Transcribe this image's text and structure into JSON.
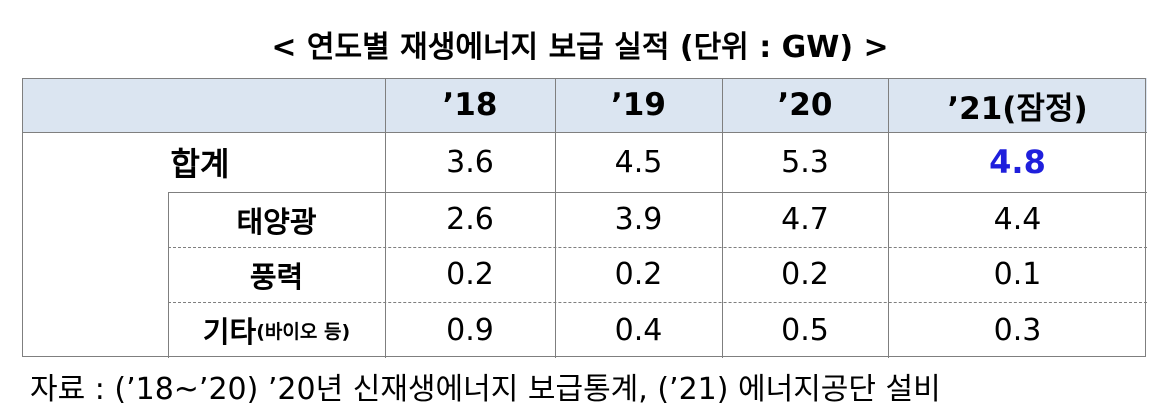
{
  "title": "< 연도별 재생에너지 보급 실적 (단위 : GW) >",
  "table": {
    "header": [
      "’18",
      "’19",
      "’20",
      "’21(잠정)"
    ],
    "rows": [
      {
        "label": "합계",
        "values": [
          3.6,
          4.5,
          5.3,
          4.8
        ]
      },
      {
        "label": "태양광",
        "values": [
          2.6,
          3.9,
          4.7,
          4.4
        ]
      },
      {
        "label": "풍력",
        "values": [
          0.2,
          0.2,
          0.2,
          0.1
        ]
      },
      {
        "label": "기타",
        "note": "(바이오 등)",
        "values": [
          0.9,
          0.4,
          0.5,
          0.3
        ]
      }
    ]
  },
  "source": "자료 : (’18~’20) ’20년 신재생에너지 보급통계, (’21) 에너지공단 설비"
}
